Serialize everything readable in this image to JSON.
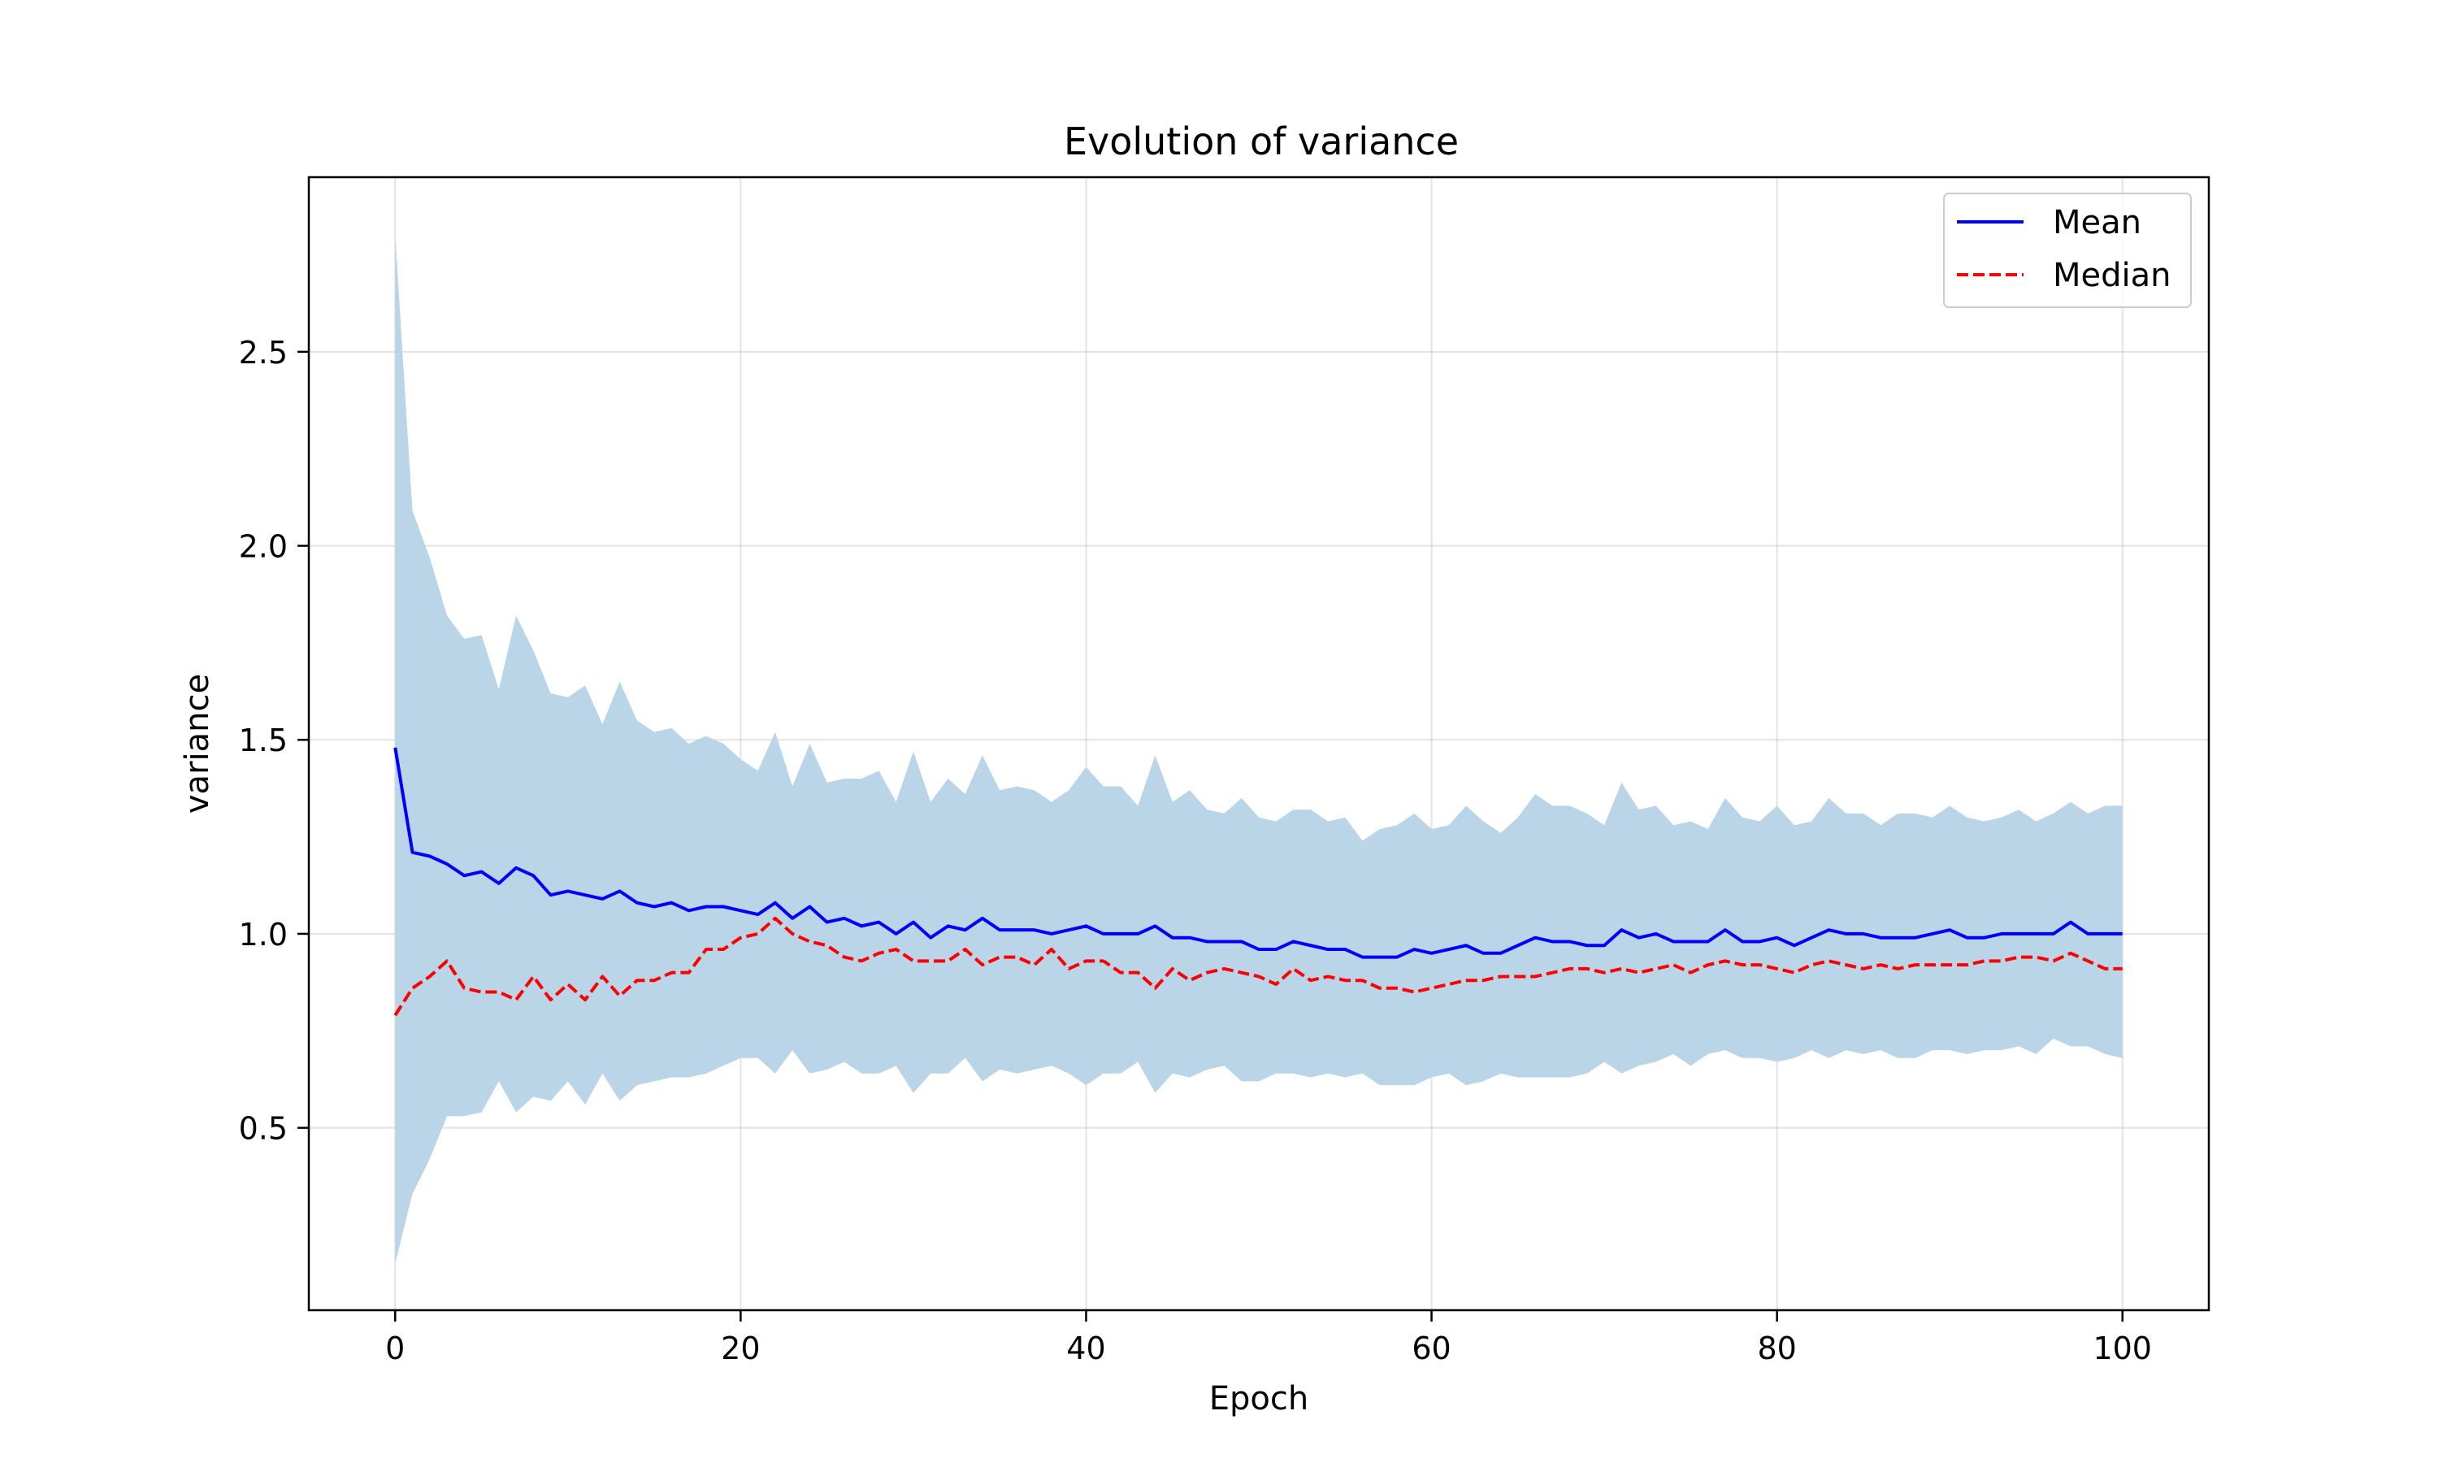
{
  "chart_data": {
    "type": "line",
    "title": "Evolution of variance",
    "xlabel": "Epoch",
    "ylabel": "variance",
    "xlim": [
      -5,
      105
    ],
    "ylim": [
      0.03,
      2.95
    ],
    "xticks": [
      0,
      20,
      40,
      60,
      80,
      100
    ],
    "yticks": [
      0.5,
      1.0,
      1.5,
      2.0,
      2.5
    ],
    "xtick_labels": [
      "0",
      "20",
      "40",
      "60",
      "80",
      "100"
    ],
    "ytick_labels": [
      "0.5",
      "1.0",
      "1.5",
      "2.0",
      "2.5"
    ],
    "grid": true,
    "legend_position": "top-right",
    "colors": {
      "mean": "#0000ff",
      "median": "#ff0000",
      "band": "#bad4e8"
    },
    "x": [
      0,
      1,
      2,
      3,
      4,
      5,
      6,
      7,
      8,
      9,
      10,
      11,
      12,
      13,
      14,
      15,
      16,
      17,
      18,
      19,
      20,
      21,
      22,
      23,
      24,
      25,
      26,
      27,
      28,
      29,
      30,
      31,
      32,
      33,
      34,
      35,
      36,
      37,
      38,
      39,
      40,
      41,
      42,
      43,
      44,
      45,
      46,
      47,
      48,
      49,
      50,
      51,
      52,
      53,
      54,
      55,
      56,
      57,
      58,
      59,
      60,
      61,
      62,
      63,
      64,
      65,
      66,
      67,
      68,
      69,
      70,
      71,
      72,
      73,
      74,
      75,
      76,
      77,
      78,
      79,
      80,
      81,
      82,
      83,
      84,
      85,
      86,
      87,
      88,
      89,
      90,
      91,
      92,
      93,
      94,
      95,
      96,
      97,
      98,
      99,
      100
    ],
    "series": [
      {
        "name": "Mean",
        "style": "solid",
        "values": [
          1.48,
          1.21,
          1.2,
          1.18,
          1.15,
          1.16,
          1.13,
          1.17,
          1.15,
          1.1,
          1.11,
          1.1,
          1.09,
          1.11,
          1.08,
          1.07,
          1.08,
          1.06,
          1.07,
          1.07,
          1.06,
          1.05,
          1.08,
          1.04,
          1.07,
          1.03,
          1.04,
          1.02,
          1.03,
          1.0,
          1.03,
          0.99,
          1.02,
          1.01,
          1.04,
          1.01,
          1.01,
          1.01,
          1.0,
          1.01,
          1.02,
          1.0,
          1.0,
          1.0,
          1.02,
          0.99,
          0.99,
          0.98,
          0.98,
          0.98,
          0.96,
          0.96,
          0.98,
          0.97,
          0.96,
          0.96,
          0.94,
          0.94,
          0.94,
          0.96,
          0.95,
          0.96,
          0.97,
          0.95,
          0.95,
          0.97,
          0.99,
          0.98,
          0.98,
          0.97,
          0.97,
          1.01,
          0.99,
          1.0,
          0.98,
          0.98,
          0.98,
          1.01,
          0.98,
          0.98,
          0.99,
          0.97,
          0.99,
          1.01,
          1.0,
          1.0,
          0.99,
          0.99,
          0.99,
          1.0,
          1.01,
          0.99,
          0.99,
          1.0,
          1.0,
          1.0,
          1.0,
          1.03,
          1.0,
          1.0,
          1.0
        ]
      },
      {
        "name": "Median",
        "style": "dashed",
        "values": [
          0.79,
          0.86,
          0.89,
          0.93,
          0.86,
          0.85,
          0.85,
          0.83,
          0.89,
          0.83,
          0.87,
          0.83,
          0.89,
          0.84,
          0.88,
          0.88,
          0.9,
          0.9,
          0.96,
          0.96,
          0.99,
          1.0,
          1.04,
          1.0,
          0.98,
          0.97,
          0.94,
          0.93,
          0.95,
          0.96,
          0.93,
          0.93,
          0.93,
          0.96,
          0.92,
          0.94,
          0.94,
          0.92,
          0.96,
          0.91,
          0.93,
          0.93,
          0.9,
          0.9,
          0.86,
          0.91,
          0.88,
          0.9,
          0.91,
          0.9,
          0.89,
          0.87,
          0.91,
          0.88,
          0.89,
          0.88,
          0.88,
          0.86,
          0.86,
          0.85,
          0.86,
          0.87,
          0.88,
          0.88,
          0.89,
          0.89,
          0.89,
          0.9,
          0.91,
          0.91,
          0.9,
          0.91,
          0.9,
          0.91,
          0.92,
          0.9,
          0.92,
          0.93,
          0.92,
          0.92,
          0.91,
          0.9,
          0.92,
          0.93,
          0.92,
          0.91,
          0.92,
          0.91,
          0.92,
          0.92,
          0.92,
          0.92,
          0.93,
          0.93,
          0.94,
          0.94,
          0.93,
          0.95,
          0.93,
          0.91,
          0.91
        ]
      }
    ],
    "band": {
      "lower": [
        0.15,
        0.33,
        0.42,
        0.53,
        0.53,
        0.54,
        0.62,
        0.54,
        0.58,
        0.57,
        0.62,
        0.56,
        0.64,
        0.57,
        0.61,
        0.62,
        0.63,
        0.63,
        0.64,
        0.66,
        0.68,
        0.68,
        0.64,
        0.7,
        0.64,
        0.65,
        0.67,
        0.64,
        0.64,
        0.66,
        0.59,
        0.64,
        0.64,
        0.68,
        0.62,
        0.65,
        0.64,
        0.65,
        0.66,
        0.64,
        0.61,
        0.64,
        0.64,
        0.67,
        0.59,
        0.64,
        0.63,
        0.65,
        0.66,
        0.62,
        0.62,
        0.64,
        0.64,
        0.63,
        0.64,
        0.63,
        0.64,
        0.61,
        0.61,
        0.61,
        0.63,
        0.64,
        0.61,
        0.62,
        0.64,
        0.63,
        0.63,
        0.63,
        0.63,
        0.64,
        0.67,
        0.64,
        0.66,
        0.67,
        0.69,
        0.66,
        0.69,
        0.7,
        0.68,
        0.68,
        0.67,
        0.68,
        0.7,
        0.68,
        0.7,
        0.69,
        0.7,
        0.68,
        0.68,
        0.7,
        0.7,
        0.69,
        0.7,
        0.7,
        0.71,
        0.69,
        0.73,
        0.71,
        0.71,
        0.69,
        0.68
      ],
      "upper": [
        2.8,
        2.09,
        1.97,
        1.82,
        1.76,
        1.77,
        1.63,
        1.82,
        1.73,
        1.62,
        1.61,
        1.64,
        1.54,
        1.65,
        1.55,
        1.52,
        1.53,
        1.49,
        1.51,
        1.49,
        1.45,
        1.42,
        1.52,
        1.38,
        1.49,
        1.39,
        1.4,
        1.4,
        1.42,
        1.34,
        1.47,
        1.34,
        1.4,
        1.36,
        1.46,
        1.37,
        1.38,
        1.37,
        1.34,
        1.37,
        1.43,
        1.38,
        1.38,
        1.33,
        1.46,
        1.34,
        1.37,
        1.32,
        1.31,
        1.35,
        1.3,
        1.29,
        1.32,
        1.32,
        1.29,
        1.3,
        1.24,
        1.27,
        1.28,
        1.31,
        1.27,
        1.28,
        1.33,
        1.29,
        1.26,
        1.3,
        1.36,
        1.33,
        1.33,
        1.31,
        1.28,
        1.39,
        1.32,
        1.33,
        1.28,
        1.29,
        1.27,
        1.35,
        1.3,
        1.29,
        1.33,
        1.28,
        1.29,
        1.35,
        1.31,
        1.31,
        1.28,
        1.31,
        1.31,
        1.3,
        1.33,
        1.3,
        1.29,
        1.3,
        1.32,
        1.29,
        1.31,
        1.34,
        1.31,
        1.33,
        1.33
      ]
    }
  }
}
